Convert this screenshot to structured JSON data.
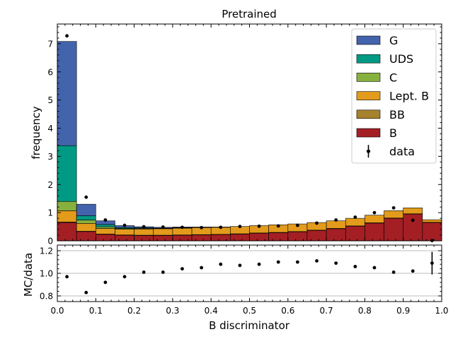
{
  "chart_data": {
    "type": "stacked-histogram-with-ratio",
    "title": "Pretrained",
    "xlabel": "B discriminator",
    "ylabel_top": "frequency",
    "ylabel_bottom": "MC/data",
    "xlim": [
      0,
      1
    ],
    "ylim_top": [
      0,
      7.7
    ],
    "ylim_bottom": [
      0.75,
      1.25
    ],
    "x_ticks": [
      "0.0",
      "0.1",
      "0.2",
      "0.3",
      "0.4",
      "0.5",
      "0.6",
      "0.7",
      "0.8",
      "0.9",
      "1.0"
    ],
    "y_ticks_top": [
      "0",
      "1",
      "2",
      "3",
      "4",
      "5",
      "6",
      "7"
    ],
    "y_ticks_bottom": [
      "0.8",
      "1.0",
      "1.2"
    ],
    "bins": [
      0.0,
      0.05,
      0.1,
      0.15,
      0.2,
      0.25,
      0.3,
      0.35,
      0.4,
      0.45,
      0.5,
      0.55,
      0.6,
      0.65,
      0.7,
      0.75,
      0.8,
      0.85,
      0.9,
      0.95,
      1.0
    ],
    "legend_position": "top-right",
    "series": [
      {
        "name": "B",
        "color": "#a31f24",
        "values": [
          0.65,
          0.33,
          0.23,
          0.2,
          0.19,
          0.19,
          0.2,
          0.21,
          0.22,
          0.24,
          0.27,
          0.29,
          0.32,
          0.37,
          0.43,
          0.52,
          0.63,
          0.8,
          0.95,
          0.65,
          0.0
        ]
      },
      {
        "name": "BB",
        "color": "#a6812e",
        "values": [
          0.02,
          0.01,
          0.01,
          0.01,
          0.01,
          0.01,
          0.01,
          0.01,
          0.01,
          0.01,
          0.01,
          0.01,
          0.01,
          0.01,
          0.01,
          0.01,
          0.01,
          0.01,
          0.01,
          0.01,
          0.0
        ]
      },
      {
        "name": "Lept. B",
        "color": "#e39b1c",
        "values": [
          0.4,
          0.28,
          0.2,
          0.2,
          0.22,
          0.23,
          0.24,
          0.25,
          0.25,
          0.26,
          0.26,
          0.27,
          0.27,
          0.27,
          0.27,
          0.27,
          0.27,
          0.26,
          0.21,
          0.09,
          0.0
        ]
      },
      {
        "name": "C",
        "color": "#87b13f",
        "values": [
          0.33,
          0.12,
          0.06,
          0.03,
          0.02,
          0.01,
          0.01,
          0.0,
          0.0,
          0.0,
          0.0,
          0.0,
          0.0,
          0.0,
          0.0,
          0.0,
          0.0,
          0.0,
          0.0,
          0.0,
          0.0
        ]
      },
      {
        "name": "UDS",
        "color": "#009a84",
        "values": [
          1.98,
          0.15,
          0.08,
          0.03,
          0.02,
          0.01,
          0.01,
          0.01,
          0.0,
          0.0,
          0.0,
          0.0,
          0.0,
          0.0,
          0.0,
          0.0,
          0.0,
          0.0,
          0.0,
          0.0,
          0.0
        ]
      },
      {
        "name": "G",
        "color": "#4463ad",
        "values": [
          3.7,
          0.41,
          0.13,
          0.07,
          0.04,
          0.03,
          0.02,
          0.01,
          0.01,
          0.0,
          0.0,
          0.0,
          0.0,
          0.0,
          0.0,
          0.0,
          0.0,
          0.0,
          0.0,
          0.0,
          0.0
        ]
      }
    ],
    "data": {
      "name": "data",
      "x": [
        0.025,
        0.075,
        0.125,
        0.175,
        0.225,
        0.275,
        0.325,
        0.375,
        0.425,
        0.475,
        0.525,
        0.575,
        0.625,
        0.675,
        0.725,
        0.775,
        0.825,
        0.875,
        0.925,
        0.975
      ],
      "y": [
        7.28,
        1.55,
        0.74,
        0.55,
        0.5,
        0.49,
        0.48,
        0.47,
        0.48,
        0.51,
        0.52,
        0.53,
        0.55,
        0.63,
        0.74,
        0.84,
        1.0,
        1.17,
        0.73,
        0.01
      ]
    },
    "ratio": {
      "x": [
        0.025,
        0.075,
        0.125,
        0.175,
        0.225,
        0.275,
        0.325,
        0.375,
        0.425,
        0.475,
        0.525,
        0.575,
        0.625,
        0.675,
        0.725,
        0.775,
        0.825,
        0.875,
        0.925,
        0.975
      ],
      "y": [
        0.97,
        0.83,
        0.92,
        0.97,
        1.01,
        1.01,
        1.04,
        1.05,
        1.08,
        1.07,
        1.08,
        1.1,
        1.1,
        1.11,
        1.09,
        1.06,
        1.05,
        1.01,
        1.02,
        1.09
      ],
      "err": [
        0.005,
        0.01,
        0.01,
        0.01,
        0.01,
        0.01,
        0.01,
        0.01,
        0.01,
        0.01,
        0.01,
        0.01,
        0.01,
        0.01,
        0.01,
        0.01,
        0.01,
        0.01,
        0.01,
        0.1
      ],
      "reference_lines": [
        0.8,
        1.0,
        1.2
      ]
    }
  }
}
